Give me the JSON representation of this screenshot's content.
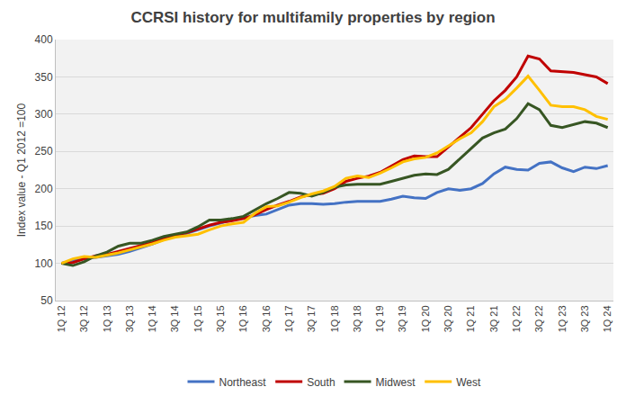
{
  "chart_data": {
    "type": "line",
    "title": "CCRSI history for multifamily properties by region",
    "y_label": "Index value - Q1 2012 =100",
    "categories": [
      "1Q 12",
      null,
      "3Q 12",
      null,
      "1Q 13",
      null,
      "3Q 13",
      null,
      "1Q 14",
      null,
      "3Q 14",
      null,
      "1Q 15",
      null,
      "3Q 15",
      null,
      "1Q 16",
      null,
      "3Q 16",
      null,
      "1Q 17",
      null,
      "3Q 17",
      null,
      "1Q 18",
      null,
      "3Q 18",
      null,
      "1Q 19",
      null,
      "3Q 19",
      null,
      "1Q 20",
      null,
      "3Q 20",
      null,
      "1Q 21",
      null,
      "3Q 21",
      null,
      "1Q 22",
      null,
      "3Q 22",
      null,
      "1Q 23",
      null,
      "3Q 23",
      null,
      "1Q 24"
    ],
    "series": [
      {
        "name": "Northeast",
        "color": "#4472c4",
        "values": [
          100,
          103,
          106,
          108,
          110,
          112,
          116,
          121,
          126,
          132,
          136,
          140,
          145,
          150,
          154,
          158,
          161,
          164,
          166,
          172,
          178,
          180,
          180,
          179,
          180,
          182,
          183,
          183,
          183,
          186,
          190,
          188,
          187,
          195,
          200,
          198,
          200,
          207,
          220,
          229,
          226,
          225,
          234,
          236,
          228,
          223,
          229,
          227,
          231
        ]
      },
      {
        "name": "South",
        "color": "#c00000",
        "values": [
          100,
          101,
          106,
          110,
          112,
          116,
          120,
          124,
          128,
          133,
          138,
          141,
          146,
          151,
          155,
          157,
          160,
          165,
          172,
          178,
          183,
          189,
          192,
          194,
          200,
          210,
          214,
          217,
          222,
          230,
          239,
          244,
          243,
          243,
          256,
          270,
          282,
          300,
          318,
          332,
          350,
          378,
          374,
          358,
          357,
          356,
          353,
          350,
          341
        ]
      },
      {
        "name": "Midwest",
        "color": "#375623",
        "values": [
          100,
          97,
          102,
          110,
          115,
          123,
          127,
          127,
          131,
          136,
          139,
          142,
          149,
          158,
          158,
          160,
          163,
          172,
          180,
          187,
          195,
          194,
          190,
          195,
          202,
          205,
          206,
          206,
          206,
          210,
          214,
          218,
          220,
          219,
          226,
          240,
          254,
          268,
          275,
          280,
          294,
          314,
          306,
          285,
          282,
          286,
          290,
          288,
          282
        ]
      },
      {
        "name": "West",
        "color": "#ffc000",
        "values": [
          100,
          106,
          109,
          108,
          111,
          114,
          118,
          122,
          126,
          131,
          135,
          137,
          139,
          145,
          150,
          153,
          155,
          167,
          176,
          177,
          182,
          188,
          193,
          197,
          203,
          214,
          217,
          215,
          221,
          228,
          236,
          240,
          242,
          248,
          258,
          267,
          275,
          290,
          310,
          320,
          335,
          351,
          332,
          312,
          310,
          310,
          306,
          297,
          293
        ]
      }
    ],
    "ylim": [
      50,
      400
    ],
    "yticks": [
      50,
      100,
      150,
      200,
      250,
      300,
      350,
      400
    ],
    "grid": true,
    "legend": "bottom",
    "line_style": "solid"
  }
}
